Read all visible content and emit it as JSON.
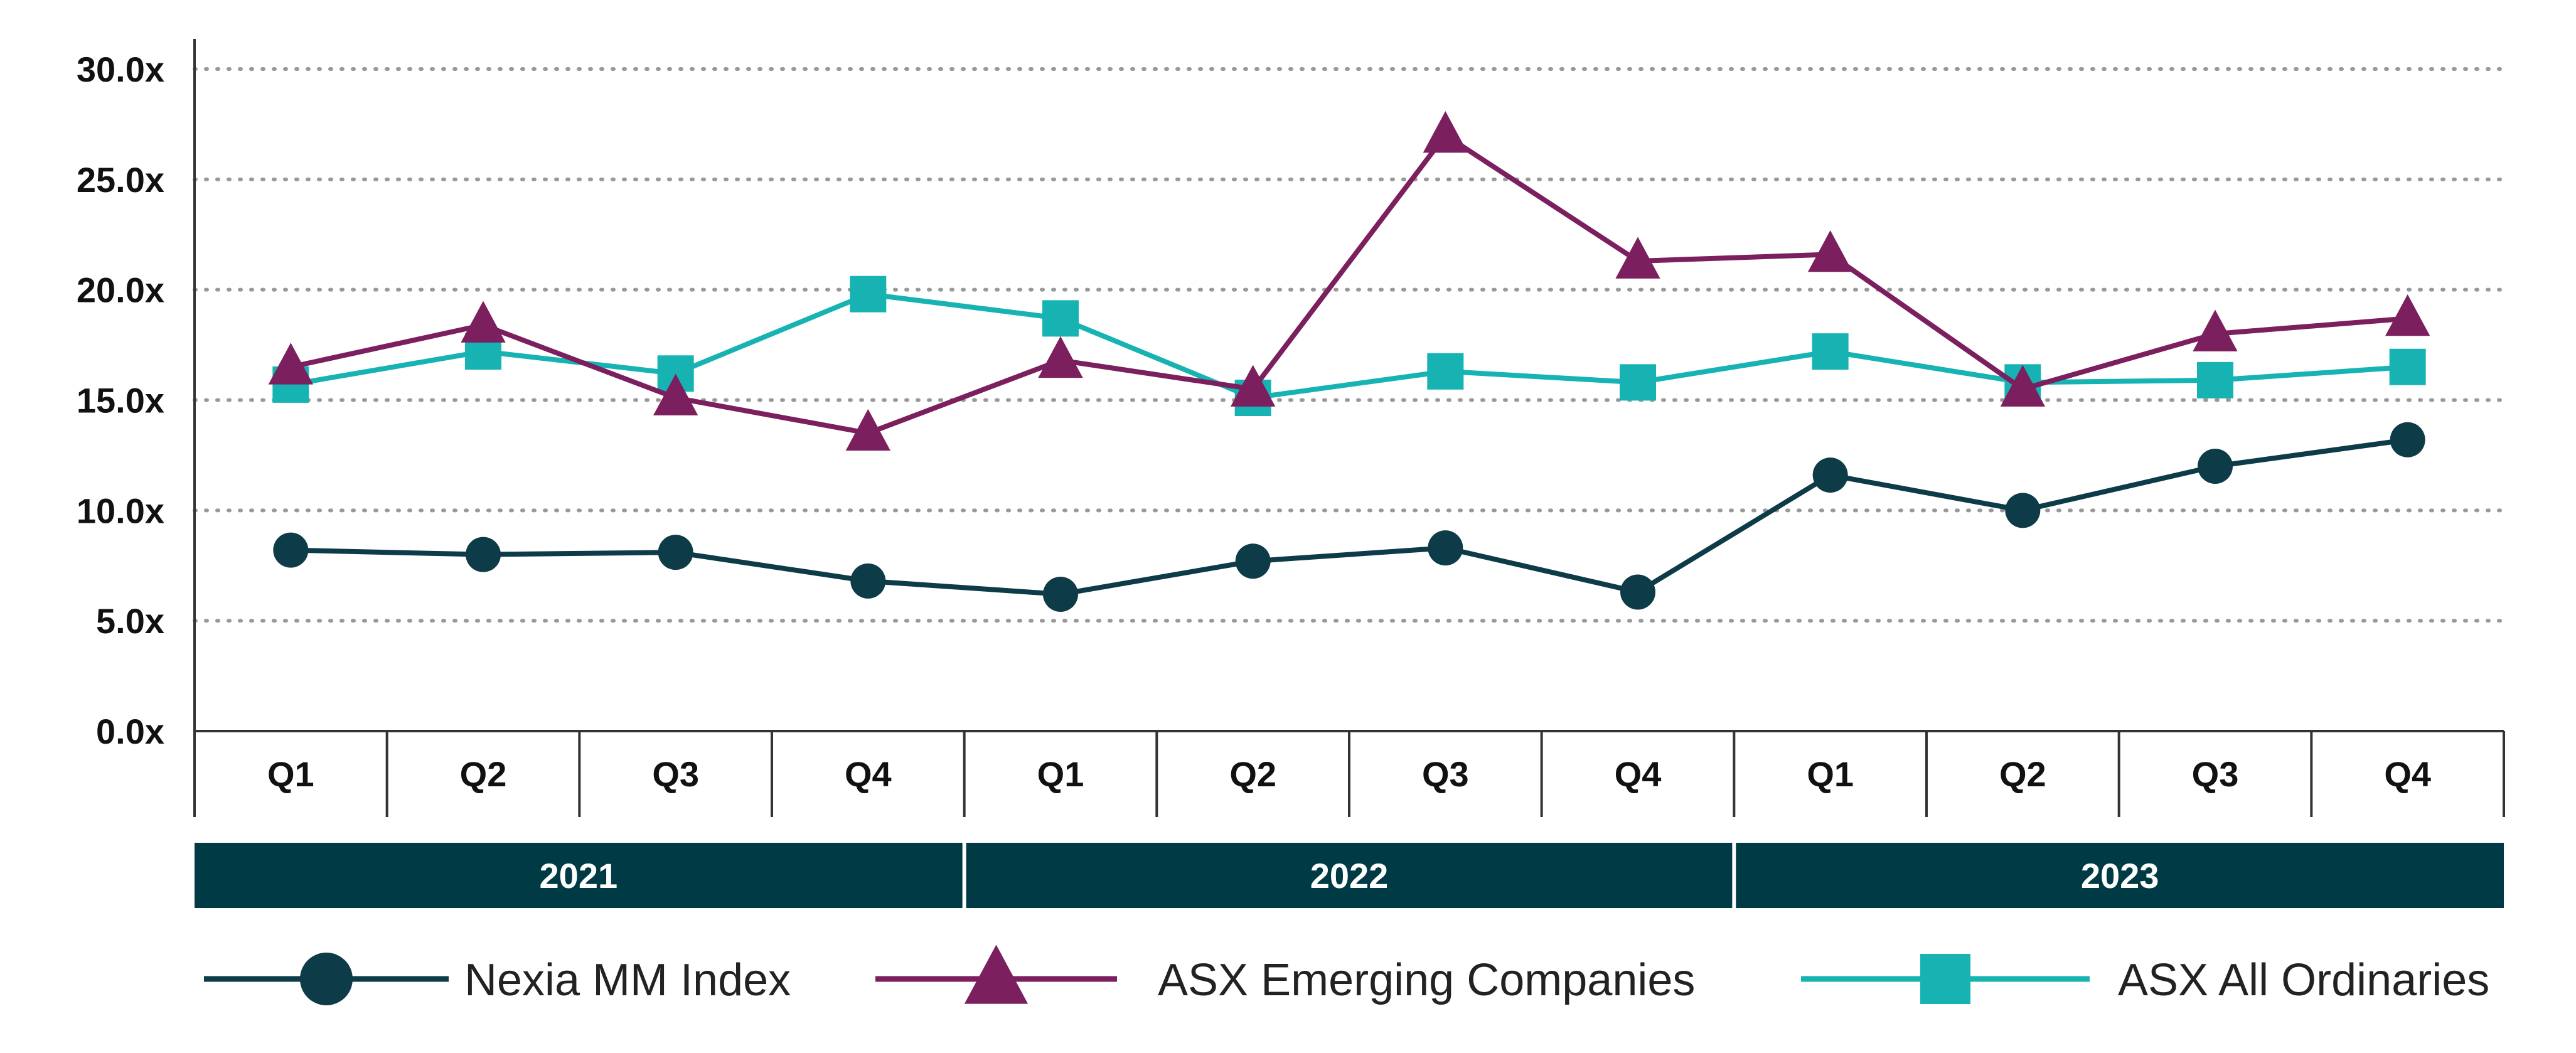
{
  "chart_data": {
    "type": "line",
    "y_tick_labels": [
      "0.0x",
      "5.0x",
      "10.0x",
      "15.0x",
      "20.0x",
      "25.0x",
      "30.0x"
    ],
    "ylim": [
      0,
      30
    ],
    "grid": "horizontal dotted",
    "quarters": [
      "Q1",
      "Q2",
      "Q3",
      "Q4",
      "Q1",
      "Q2",
      "Q3",
      "Q4",
      "Q1",
      "Q2",
      "Q3",
      "Q4"
    ],
    "years": [
      "2021",
      "2022",
      "2023"
    ],
    "legend_position": "bottom",
    "series": [
      {
        "name": "Nexia MM Index",
        "color": "#0d3b47",
        "marker": "circle",
        "values": [
          8.2,
          8.0,
          8.1,
          6.8,
          6.2,
          7.7,
          8.3,
          6.3,
          11.6,
          10.0,
          12.0,
          13.2
        ]
      },
      {
        "name": "ASX Emerging Companies",
        "color": "#7b1f5e",
        "marker": "triangle",
        "values": [
          16.5,
          18.4,
          15.1,
          13.5,
          16.8,
          15.5,
          27.0,
          21.3,
          21.6,
          15.5,
          18.0,
          18.7
        ]
      },
      {
        "name": "ASX All Ordinaries",
        "color": "#17b3b3",
        "marker": "square",
        "values": [
          15.7,
          17.2,
          16.2,
          19.8,
          18.7,
          15.1,
          16.3,
          15.8,
          17.2,
          15.8,
          15.9,
          16.5
        ]
      }
    ],
    "colors": {
      "year_band": "#003a44",
      "axis": "#333333",
      "grid": "#999999"
    }
  }
}
